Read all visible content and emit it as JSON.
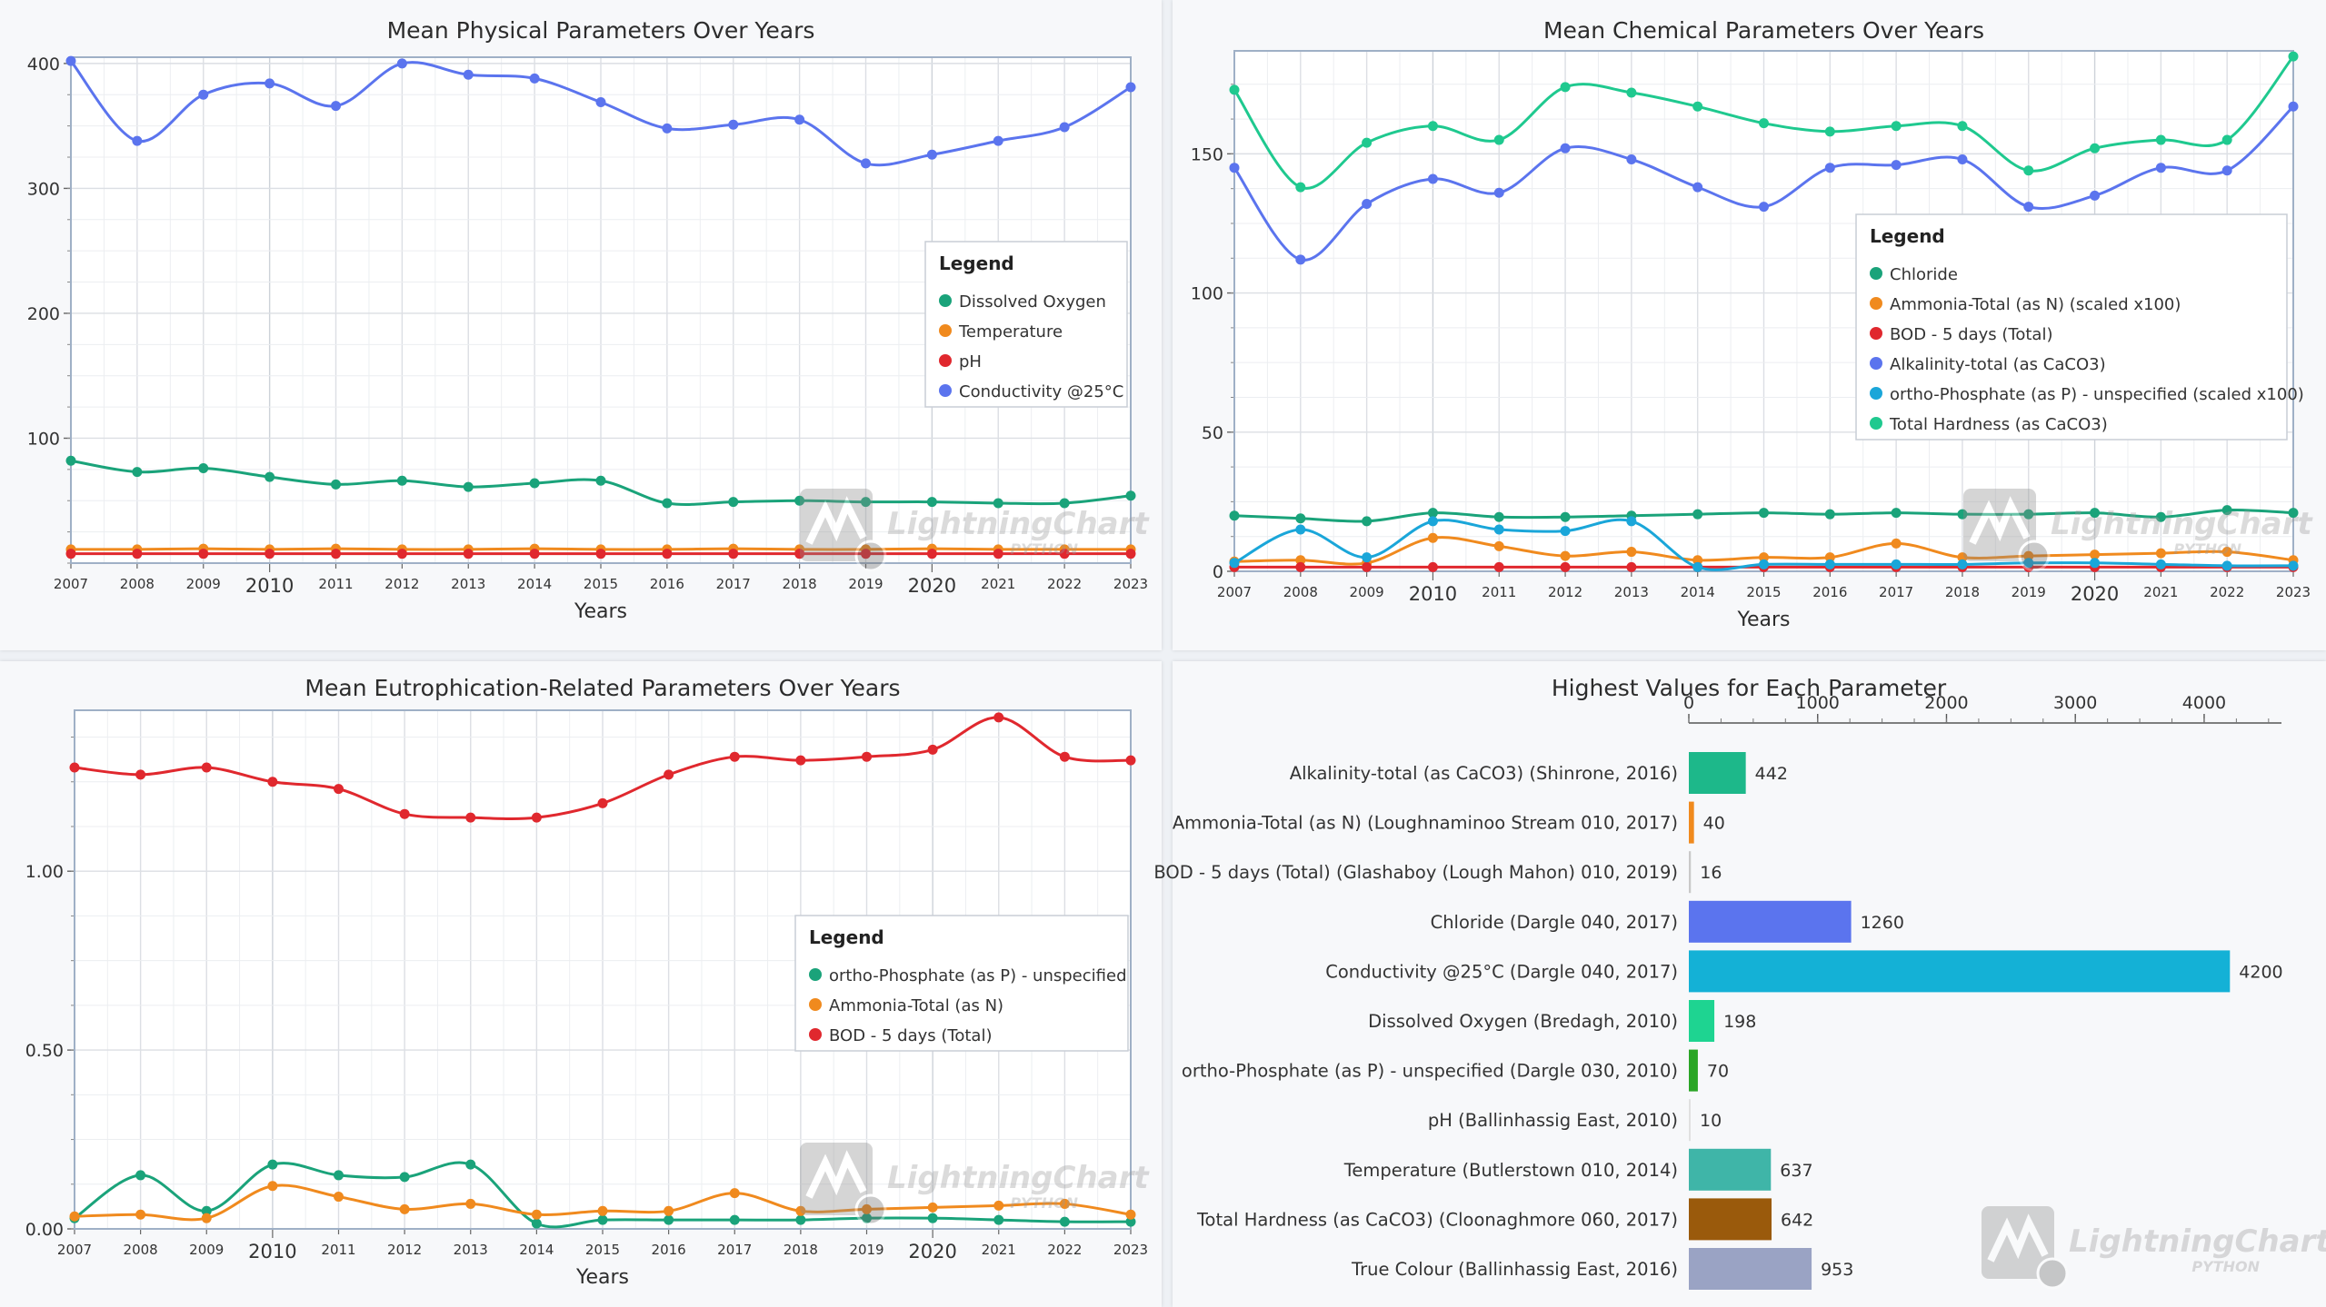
{
  "colors": {
    "green": "#1aa37a",
    "orange": "#f08a1e",
    "red": "#e0282e",
    "blue": "#5b74ee",
    "cyan": "#1aa6d9",
    "teal": "#1fc98f",
    "grid": "#dcdfe4",
    "axis": "#9fb0c6"
  },
  "watermark": {
    "brand": "LightningChart",
    "sub": "PYTHON"
  },
  "chart_data": [
    {
      "type": "line",
      "title": "Mean Physical Parameters Over Years",
      "xlabel": "Years",
      "x": [
        2007,
        2008,
        2009,
        2010,
        2011,
        2012,
        2013,
        2014,
        2015,
        2016,
        2017,
        2018,
        2019,
        2020,
        2021,
        2022,
        2023
      ],
      "xlim": [
        2007,
        2023
      ],
      "ylim": [
        0,
        405
      ],
      "yticks": [
        100,
        200,
        300,
        400
      ],
      "legend": {
        "title": "Legend",
        "position": "right"
      },
      "series": [
        {
          "name": "Dissolved Oxygen",
          "color": "#1aa37a",
          "values": [
            82,
            73,
            76,
            69,
            63,
            66,
            61,
            64,
            66,
            48,
            49,
            50,
            49,
            49,
            48,
            48,
            54
          ]
        },
        {
          "name": "Temperature",
          "color": "#f08a1e",
          "values": [
            11,
            11,
            11.5,
            11,
            11.5,
            11,
            11,
            11.5,
            11,
            11,
            11.5,
            11,
            11,
            11.5,
            11,
            11,
            11
          ]
        },
        {
          "name": "pH",
          "color": "#e0282e",
          "values": [
            7.5,
            7.5,
            7.5,
            7.5,
            7.5,
            7.5,
            7.5,
            7.5,
            7.5,
            7.5,
            7.5,
            7.5,
            7.5,
            7.5,
            7.5,
            7.5,
            7.5
          ]
        },
        {
          "name": "Conductivity @25°C",
          "color": "#5b74ee",
          "values": [
            402,
            338,
            375,
            384,
            366,
            400,
            391,
            388,
            369,
            348,
            351,
            355,
            320,
            327,
            338,
            349,
            381
          ]
        }
      ]
    },
    {
      "type": "line",
      "title": "Mean Chemical Parameters Over Years",
      "xlabel": "Years",
      "x": [
        2007,
        2008,
        2009,
        2010,
        2011,
        2012,
        2013,
        2014,
        2015,
        2016,
        2017,
        2018,
        2019,
        2020,
        2021,
        2022,
        2023
      ],
      "xlim": [
        2007,
        2023
      ],
      "ylim": [
        0,
        187
      ],
      "yticks": [
        0,
        50,
        100,
        150
      ],
      "legend": {
        "title": "Legend",
        "position": "right"
      },
      "series": [
        {
          "name": "Chloride",
          "color": "#1aa37a",
          "values": [
            20,
            19,
            18,
            21,
            19.5,
            19.5,
            20,
            20.5,
            21,
            20.5,
            21,
            20.5,
            20.5,
            21,
            19.5,
            22,
            21
          ]
        },
        {
          "name": "Ammonia-Total (as N) (scaled x100)",
          "color": "#f08a1e",
          "values": [
            3.5,
            4,
            3,
            12,
            9,
            5.5,
            7,
            4,
            5,
            5,
            10,
            5,
            5.5,
            6,
            6.5,
            7,
            4
          ]
        },
        {
          "name": "BOD - 5 days (Total)",
          "color": "#e0282e",
          "values": [
            1.5,
            1.5,
            1.5,
            1.5,
            1.5,
            1.5,
            1.5,
            1.5,
            1.5,
            1.5,
            1.5,
            1.5,
            1.5,
            1.5,
            1.5,
            1.5,
            1.5
          ]
        },
        {
          "name": "Alkalinity-total (as CaCO3)",
          "color": "#5b74ee",
          "values": [
            145,
            112,
            132,
            141,
            136,
            152,
            148,
            138,
            131,
            145,
            146,
            148,
            131,
            135,
            145,
            144,
            167
          ]
        },
        {
          "name": "ortho-Phosphate (as P) - unspecified (scaled x100)",
          "color": "#1aa6d9",
          "values": [
            3,
            15,
            5,
            18,
            15,
            14.5,
            18,
            1.5,
            2.5,
            2.5,
            2.5,
            2.5,
            3,
            3,
            2.5,
            2,
            2
          ]
        },
        {
          "name": "Total Hardness (as CaCO3)",
          "color": "#1fc98f",
          "values": [
            173,
            138,
            154,
            160,
            155,
            174,
            172,
            167,
            161,
            158,
            160,
            160,
            144,
            152,
            155,
            155,
            185
          ]
        }
      ]
    },
    {
      "type": "line",
      "title": "Mean Eutrophication-Related Parameters Over Years",
      "xlabel": "Years",
      "x": [
        2007,
        2008,
        2009,
        2010,
        2011,
        2012,
        2013,
        2014,
        2015,
        2016,
        2017,
        2018,
        2019,
        2020,
        2021,
        2022,
        2023
      ],
      "xlim": [
        2007,
        2023
      ],
      "ylim": [
        0,
        1.45
      ],
      "yticks": [
        0.0,
        0.5,
        1.0
      ],
      "ytick_labels": [
        "0.00",
        "0.50",
        "1.00"
      ],
      "legend": {
        "title": "Legend",
        "position": "right"
      },
      "series": [
        {
          "name": "ortho-Phosphate (as P) - unspecified",
          "color": "#1aa37a",
          "values": [
            0.03,
            0.15,
            0.05,
            0.18,
            0.15,
            0.145,
            0.18,
            0.015,
            0.025,
            0.025,
            0.025,
            0.025,
            0.03,
            0.03,
            0.025,
            0.02,
            0.02
          ]
        },
        {
          "name": "Ammonia-Total (as N)",
          "color": "#f08a1e",
          "values": [
            0.035,
            0.04,
            0.03,
            0.12,
            0.09,
            0.055,
            0.07,
            0.04,
            0.05,
            0.05,
            0.1,
            0.05,
            0.055,
            0.06,
            0.065,
            0.07,
            0.04
          ]
        },
        {
          "name": "BOD - 5 days (Total)",
          "color": "#e0282e",
          "values": [
            1.29,
            1.27,
            1.29,
            1.25,
            1.23,
            1.16,
            1.15,
            1.15,
            1.19,
            1.27,
            1.32,
            1.31,
            1.32,
            1.34,
            1.43,
            1.32,
            1.31
          ]
        }
      ]
    },
    {
      "type": "bar",
      "orientation": "horizontal",
      "title": "Highest Values for Each Parameter",
      "xlim": [
        0,
        4600
      ],
      "xticks": [
        0,
        1000,
        2000,
        3000,
        4000
      ],
      "categories": [
        "Alkalinity-total (as CaCO3) (Shinrone, 2016)",
        "Ammonia-Total (as N) (Loughnaminoo Stream 010, 2017)",
        "BOD - 5 days (Total) (Glashaboy (Lough Mahon) 010, 2019)",
        "Chloride (Dargle 040, 2017)",
        "Conductivity @25°C (Dargle 040, 2017)",
        "Dissolved Oxygen (Bredagh, 2010)",
        "ortho-Phosphate (as P) - unspecified (Dargle 030, 2010)",
        "pH (Ballinhassig East, 2010)",
        "Temperature (Butlerstown 010, 2014)",
        "Total Hardness (as CaCO3) (Cloonaghmore 060, 2017)",
        "True Colour (Ballinhassig East, 2016)"
      ],
      "values": [
        442,
        40,
        16,
        1260,
        4200,
        198,
        70,
        10,
        637,
        642,
        953
      ],
      "bar_colors": [
        "#1db88a",
        "#f08a1e",
        "#c9c9c9",
        "#5b74ee",
        "#14b1d6",
        "#1ed491",
        "#2aa525",
        "#e0e0e0",
        "#3fb5a8",
        "#9a5a0c",
        "#9aa3c4"
      ]
    }
  ]
}
